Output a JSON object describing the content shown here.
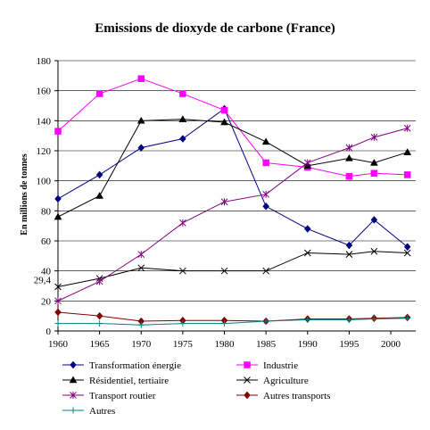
{
  "chart_data": {
    "type": "line",
    "title": "Emissions de dioxyde de carbone (France)",
    "ylabel": "En millions de tonnes",
    "xlabel": "",
    "ylim": [
      0,
      180
    ],
    "xlim": [
      1960,
      2003
    ],
    "yticks": [
      0,
      20,
      40,
      60,
      80,
      100,
      120,
      140,
      160,
      180
    ],
    "xticks": [
      1960,
      1965,
      1970,
      1975,
      1980,
      1985,
      1990,
      1995,
      2000
    ],
    "grid": "horizontal",
    "legend": "bottom",
    "annotations": [
      {
        "text": "29,4",
        "x": 1960,
        "y": 29.4
      }
    ],
    "series": [
      {
        "name": "Transformation énergie",
        "color": "#000080",
        "marker": "diamond",
        "x": [
          1960,
          1965,
          1970,
          1975,
          1980,
          1985,
          1990,
          1995,
          1998,
          2002
        ],
        "values": [
          88,
          104,
          122,
          128,
          148,
          83,
          68,
          57,
          74,
          56
        ]
      },
      {
        "name": "Industrie",
        "color": "#ff00ff",
        "marker": "square",
        "x": [
          1960,
          1965,
          1970,
          1975,
          1980,
          1985,
          1990,
          1995,
          1998,
          2002
        ],
        "values": [
          133,
          158,
          168,
          158,
          147,
          112,
          109,
          103,
          105,
          104
        ]
      },
      {
        "name": "Résidentiel, tertiaire",
        "color": "#000000",
        "marker": "triangle",
        "x": [
          1960,
          1965,
          1970,
          1975,
          1980,
          1985,
          1990,
          1995,
          1998,
          2002
        ],
        "values": [
          76,
          90,
          140,
          141,
          139,
          126,
          110,
          115,
          112,
          119
        ]
      },
      {
        "name": "Agriculture",
        "color": "#000000",
        "marker": "x",
        "x": [
          1960,
          1965,
          1970,
          1975,
          1980,
          1985,
          1990,
          1995,
          1998,
          2002
        ],
        "values": [
          29.4,
          35,
          42,
          40,
          40,
          40,
          52,
          51,
          53,
          52
        ]
      },
      {
        "name": "Transport routier",
        "color": "#800080",
        "marker": "star",
        "x": [
          1960,
          1965,
          1970,
          1975,
          1980,
          1985,
          1990,
          1995,
          1998,
          2002
        ],
        "values": [
          20,
          33,
          51,
          72,
          86,
          91,
          112,
          122,
          129,
          135
        ]
      },
      {
        "name": "Autres transports",
        "color": "#800000",
        "marker": "diamond",
        "x": [
          1960,
          1965,
          1970,
          1975,
          1980,
          1985,
          1990,
          1995,
          1998,
          2002
        ],
        "values": [
          12.5,
          10,
          6.5,
          7,
          7,
          6.5,
          8,
          8,
          8.5,
          9
        ]
      },
      {
        "name": "Autres",
        "color": "#008080",
        "marker": "plus",
        "x": [
          1960,
          1965,
          1970,
          1975,
          1980,
          1985,
          1990,
          1995,
          1998,
          2002
        ],
        "values": [
          5,
          5,
          4,
          5,
          5,
          6.5,
          7.5,
          7.5,
          8,
          8.5
        ]
      }
    ]
  }
}
